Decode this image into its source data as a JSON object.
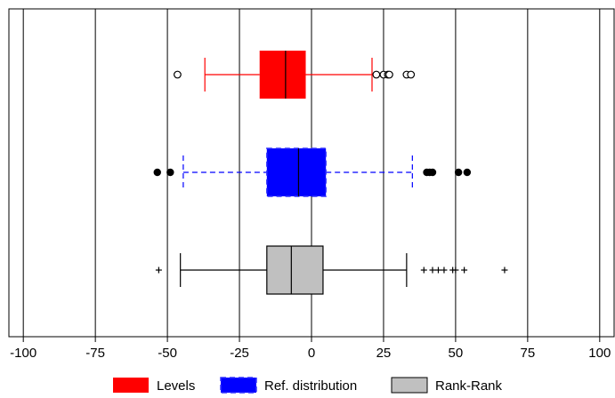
{
  "chart_data": {
    "type": "boxplot",
    "orientation": "horizontal",
    "title": "",
    "xlabel": "",
    "ylabel": "",
    "xlim": [
      -105,
      105
    ],
    "x_ticks": [
      -100,
      -75,
      -50,
      -25,
      0,
      25,
      50,
      75,
      100
    ],
    "x_tick_labels": [
      "-100",
      "-75",
      "-50",
      "-25",
      "0",
      "25",
      "50",
      "75",
      "100"
    ],
    "grid": "vertical lines at ticks",
    "legend": "bottom",
    "series": [
      {
        "name": "Levels",
        "color": "#ff0000",
        "whisker_style": "solid",
        "outlier_marker": "open-circle",
        "whisker_low": -37,
        "q1": -18,
        "median": -9,
        "q3": -2,
        "whisker_high": 21,
        "outliers": [
          -46.5,
          22.5,
          25,
          26.5,
          27,
          33,
          34.5
        ]
      },
      {
        "name": "Ref. distribution",
        "color": "#0000ff",
        "whisker_style": "dashed",
        "outlier_marker": "filled-circle",
        "whisker_low": -44.5,
        "q1": -15.5,
        "median": -4.5,
        "q3": 5,
        "whisker_high": 35,
        "outliers": [
          -53.5,
          -49,
          40,
          41,
          42,
          51,
          54
        ]
      },
      {
        "name": "Rank-Rank",
        "color": "#c0c0c0",
        "whisker_style": "solid",
        "outlier_marker": "plus",
        "whisker_low": -45.5,
        "q1": -15.5,
        "median": -7,
        "q3": 4,
        "whisker_high": 33,
        "outliers": [
          -53,
          39,
          42,
          44,
          46,
          49,
          50,
          53,
          67
        ]
      }
    ]
  }
}
